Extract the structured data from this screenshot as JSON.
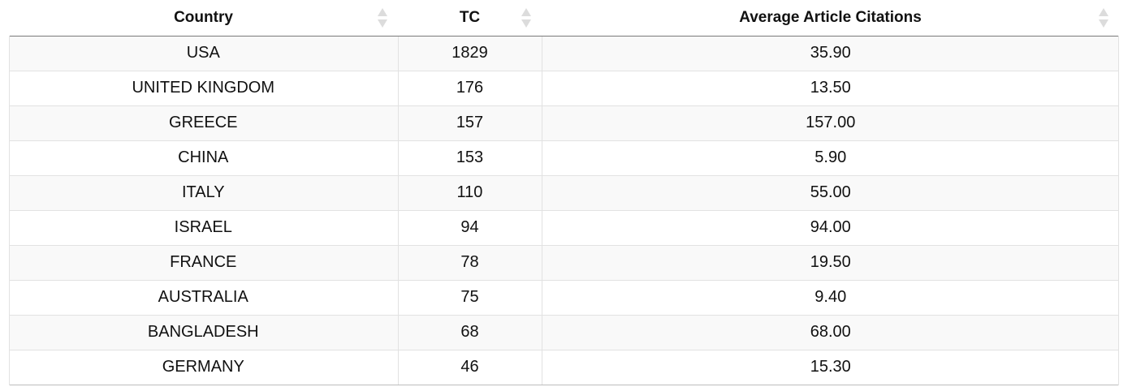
{
  "table": {
    "columns": [
      {
        "label": "Country"
      },
      {
        "label": "TC"
      },
      {
        "label": "Average Article Citations"
      }
    ],
    "rows": [
      {
        "country": "USA",
        "tc": "1829",
        "avg": "35.90"
      },
      {
        "country": "UNITED KINGDOM",
        "tc": "176",
        "avg": "13.50"
      },
      {
        "country": "GREECE",
        "tc": "157",
        "avg": "157.00"
      },
      {
        "country": "CHINA",
        "tc": "153",
        "avg": "5.90"
      },
      {
        "country": "ITALY",
        "tc": "110",
        "avg": "55.00"
      },
      {
        "country": "ISRAEL",
        "tc": "94",
        "avg": "94.00"
      },
      {
        "country": "FRANCE",
        "tc": "78",
        "avg": "19.50"
      },
      {
        "country": "AUSTRALIA",
        "tc": "75",
        "avg": "9.40"
      },
      {
        "country": "BANGLADESH",
        "tc": "68",
        "avg": "68.00"
      },
      {
        "country": "GERMANY",
        "tc": "46",
        "avg": "15.30"
      }
    ],
    "sort_icon": "sort-both-icon",
    "colors": {
      "row_stripe": "#f9f9f9",
      "border": "#e2e2e2",
      "sort_icon": "#dcdcdc"
    }
  }
}
